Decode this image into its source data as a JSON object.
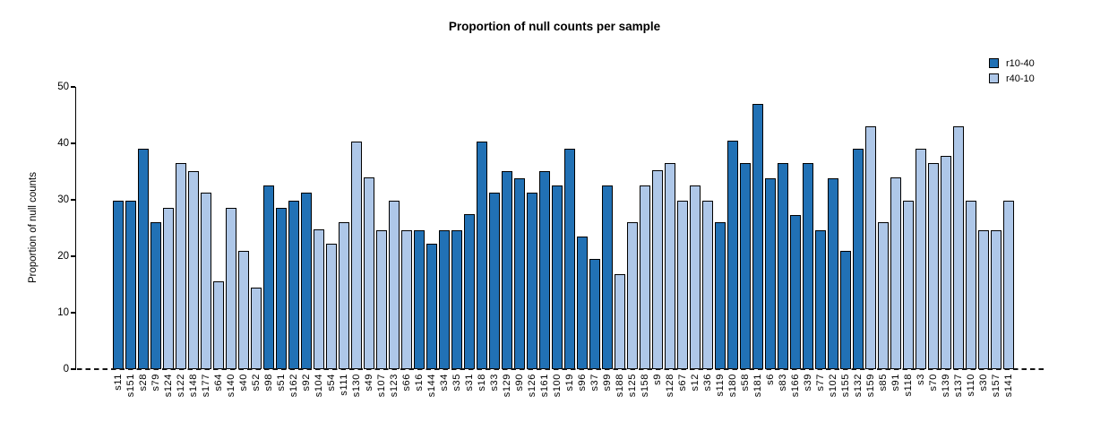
{
  "title": "Proportion of null counts per sample",
  "chart_data": {
    "type": "bar",
    "title": "Proportion of null counts per sample",
    "xlabel": "",
    "ylabel": "Proportion of null counts",
    "ylim": [
      0,
      50
    ],
    "yticks": [
      0,
      10,
      20,
      30,
      40,
      50
    ],
    "grid": false,
    "legend_position": "top-right",
    "baseline": {
      "value": 0,
      "style": "dashed",
      "color": "#151515"
    },
    "legend": [
      {
        "name": "r10-40",
        "color": "#2171b5"
      },
      {
        "name": "r40-10",
        "color": "#aec7e8"
      }
    ],
    "series_colors": {
      "r10-40": "#2171b5",
      "r40-10": "#aec7e8"
    },
    "bar_outline_color": "#000000",
    "bars": [
      {
        "sample": "s11",
        "value": 29.9,
        "group": "r10-40"
      },
      {
        "sample": "s151",
        "value": 29.9,
        "group": "r10-40"
      },
      {
        "sample": "s28",
        "value": 39.1,
        "group": "r10-40"
      },
      {
        "sample": "s79",
        "value": 26.0,
        "group": "r10-40"
      },
      {
        "sample": "s124",
        "value": 28.5,
        "group": "r40-10"
      },
      {
        "sample": "s122",
        "value": 36.5,
        "group": "r40-10"
      },
      {
        "sample": "s148",
        "value": 35.1,
        "group": "r40-10"
      },
      {
        "sample": "s177",
        "value": 31.3,
        "group": "r40-10"
      },
      {
        "sample": "s64",
        "value": 15.6,
        "group": "r40-10"
      },
      {
        "sample": "s140",
        "value": 28.5,
        "group": "r40-10"
      },
      {
        "sample": "s40",
        "value": 20.9,
        "group": "r40-10"
      },
      {
        "sample": "s52",
        "value": 14.4,
        "group": "r40-10"
      },
      {
        "sample": "s98",
        "value": 32.6,
        "group": "r10-40"
      },
      {
        "sample": "s51",
        "value": 28.5,
        "group": "r10-40"
      },
      {
        "sample": "s162",
        "value": 29.9,
        "group": "r10-40"
      },
      {
        "sample": "s92",
        "value": 31.3,
        "group": "r10-40"
      },
      {
        "sample": "s104",
        "value": 24.7,
        "group": "r40-10"
      },
      {
        "sample": "s54",
        "value": 22.2,
        "group": "r40-10"
      },
      {
        "sample": "s111",
        "value": 26.0,
        "group": "r40-10"
      },
      {
        "sample": "s130",
        "value": 40.3,
        "group": "r40-10"
      },
      {
        "sample": "s49",
        "value": 33.9,
        "group": "r40-10"
      },
      {
        "sample": "s107",
        "value": 24.6,
        "group": "r40-10"
      },
      {
        "sample": "s123",
        "value": 29.9,
        "group": "r40-10"
      },
      {
        "sample": "s66",
        "value": 24.6,
        "group": "r40-10"
      },
      {
        "sample": "s16",
        "value": 24.6,
        "group": "r10-40"
      },
      {
        "sample": "s144",
        "value": 22.2,
        "group": "r10-40"
      },
      {
        "sample": "s34",
        "value": 24.6,
        "group": "r10-40"
      },
      {
        "sample": "s35",
        "value": 24.6,
        "group": "r10-40"
      },
      {
        "sample": "s31",
        "value": 27.4,
        "group": "r10-40"
      },
      {
        "sample": "s18",
        "value": 40.3,
        "group": "r10-40"
      },
      {
        "sample": "s33",
        "value": 31.2,
        "group": "r10-40"
      },
      {
        "sample": "s129",
        "value": 35.1,
        "group": "r10-40"
      },
      {
        "sample": "s90",
        "value": 33.8,
        "group": "r10-40"
      },
      {
        "sample": "s126",
        "value": 31.3,
        "group": "r10-40"
      },
      {
        "sample": "s161",
        "value": 35.1,
        "group": "r10-40"
      },
      {
        "sample": "s100",
        "value": 32.6,
        "group": "r10-40"
      },
      {
        "sample": "s19",
        "value": 39.1,
        "group": "r10-40"
      },
      {
        "sample": "s96",
        "value": 23.5,
        "group": "r10-40"
      },
      {
        "sample": "s37",
        "value": 19.6,
        "group": "r10-40"
      },
      {
        "sample": "s99",
        "value": 32.6,
        "group": "r10-40"
      },
      {
        "sample": "s188",
        "value": 16.9,
        "group": "r40-10"
      },
      {
        "sample": "s125",
        "value": 26.1,
        "group": "r40-10"
      },
      {
        "sample": "s158",
        "value": 32.6,
        "group": "r40-10"
      },
      {
        "sample": "s9",
        "value": 35.2,
        "group": "r40-10"
      },
      {
        "sample": "s128",
        "value": 36.5,
        "group": "r40-10"
      },
      {
        "sample": "s67",
        "value": 29.8,
        "group": "r40-10"
      },
      {
        "sample": "s12",
        "value": 32.6,
        "group": "r40-10"
      },
      {
        "sample": "s36",
        "value": 29.8,
        "group": "r40-10"
      },
      {
        "sample": "s119",
        "value": 26.1,
        "group": "r10-40"
      },
      {
        "sample": "s180",
        "value": 40.4,
        "group": "r10-40"
      },
      {
        "sample": "s58",
        "value": 36.5,
        "group": "r10-40"
      },
      {
        "sample": "s181",
        "value": 47.0,
        "group": "r10-40"
      },
      {
        "sample": "s6",
        "value": 33.8,
        "group": "r10-40"
      },
      {
        "sample": "s83",
        "value": 36.5,
        "group": "r10-40"
      },
      {
        "sample": "s166",
        "value": 27.3,
        "group": "r10-40"
      },
      {
        "sample": "s39",
        "value": 36.5,
        "group": "r10-40"
      },
      {
        "sample": "s77",
        "value": 24.6,
        "group": "r10-40"
      },
      {
        "sample": "s102",
        "value": 33.8,
        "group": "r10-40"
      },
      {
        "sample": "s155",
        "value": 20.9,
        "group": "r10-40"
      },
      {
        "sample": "s132",
        "value": 39.0,
        "group": "r10-40"
      },
      {
        "sample": "s159",
        "value": 43.0,
        "group": "r40-10"
      },
      {
        "sample": "s85",
        "value": 26.0,
        "group": "r40-10"
      },
      {
        "sample": "s91",
        "value": 33.9,
        "group": "r40-10"
      },
      {
        "sample": "s118",
        "value": 29.9,
        "group": "r40-10"
      },
      {
        "sample": "s3",
        "value": 39.0,
        "group": "r40-10"
      },
      {
        "sample": "s70",
        "value": 36.5,
        "group": "r40-10"
      },
      {
        "sample": "s139",
        "value": 37.8,
        "group": "r40-10"
      },
      {
        "sample": "s137",
        "value": 43.0,
        "group": "r40-10"
      },
      {
        "sample": "s110",
        "value": 29.9,
        "group": "r40-10"
      },
      {
        "sample": "s30",
        "value": 24.6,
        "group": "r40-10"
      },
      {
        "sample": "s157",
        "value": 24.6,
        "group": "r40-10"
      },
      {
        "sample": "s141",
        "value": 29.9,
        "group": "r40-10"
      }
    ]
  }
}
